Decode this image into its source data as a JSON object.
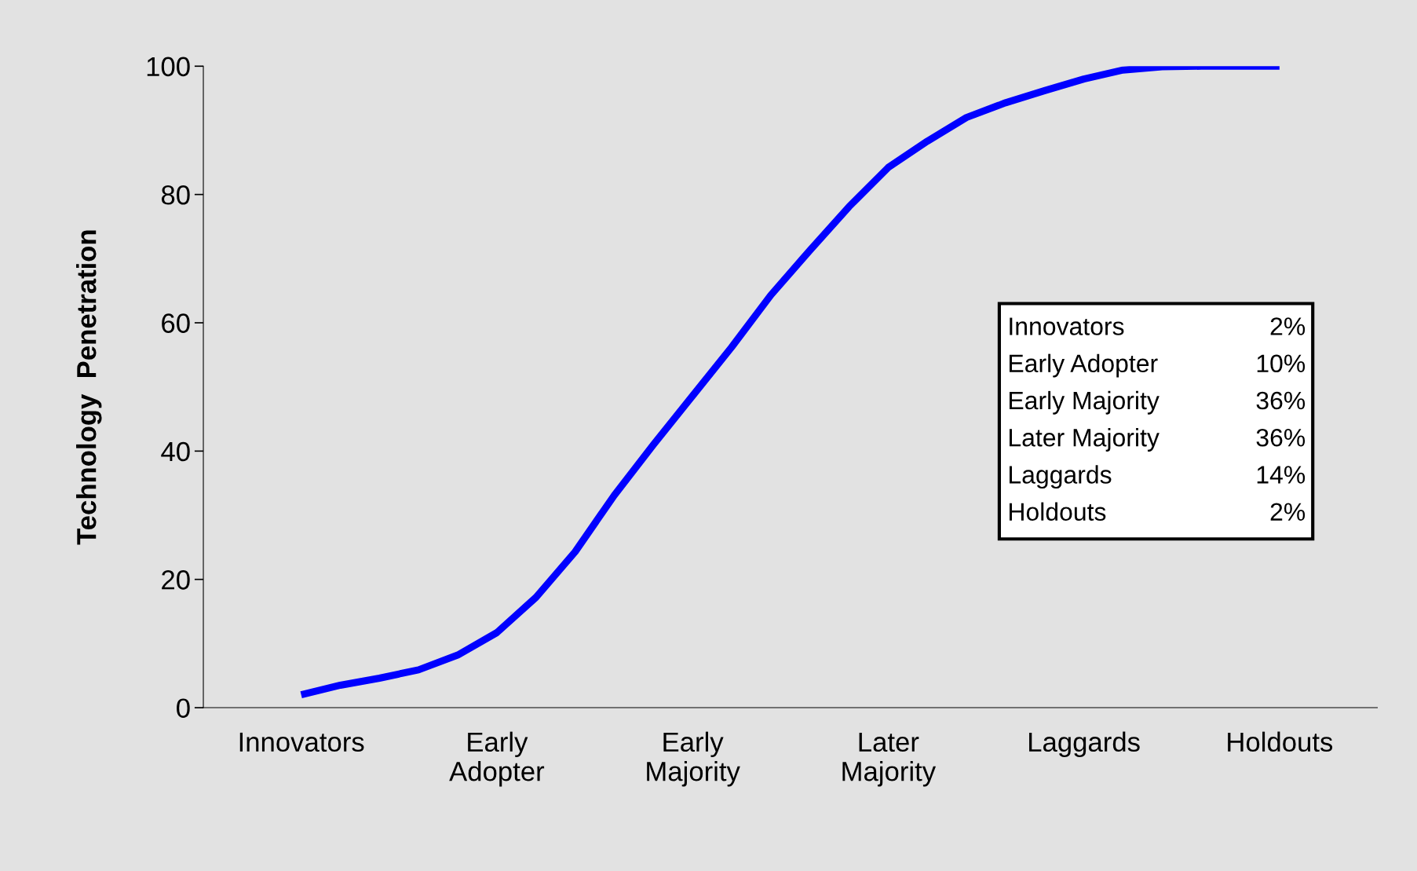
{
  "chart_data": {
    "type": "line",
    "ylabel": "Technology  Penetration",
    "categories": [
      "Innovators",
      null,
      null,
      null,
      null,
      "Early\nAdopter",
      null,
      null,
      null,
      null,
      "Early\nMajority",
      null,
      null,
      null,
      null,
      "Later\nMajority",
      null,
      null,
      null,
      null,
      "Laggards",
      null,
      null,
      null,
      null,
      "Holdouts"
    ],
    "series": [
      {
        "color": "#0000ff",
        "values": [
          2,
          3.5,
          4.6,
          5.9,
          8.2,
          11.7,
          17.2,
          24.3,
          33.1,
          41.0,
          48.6,
          56.2,
          64.3,
          71.3,
          78.1,
          84.2,
          88.3,
          92.0,
          94.3,
          96.2,
          98.0,
          99.4,
          99.9,
          100,
          100,
          100
        ]
      }
    ],
    "ylim": [
      0,
      100
    ],
    "yticks": [
      0,
      20,
      40,
      60,
      80,
      100
    ],
    "grid": false,
    "marker": "none",
    "line_style": "solid",
    "annotations": [
      "Innovators",
      "2%",
      "Early Adopter",
      "10%",
      "Early Majority",
      "36%",
      "Later Majority",
      "36%",
      "Laggards",
      "14%",
      "Holdouts",
      "2%"
    ]
  }
}
